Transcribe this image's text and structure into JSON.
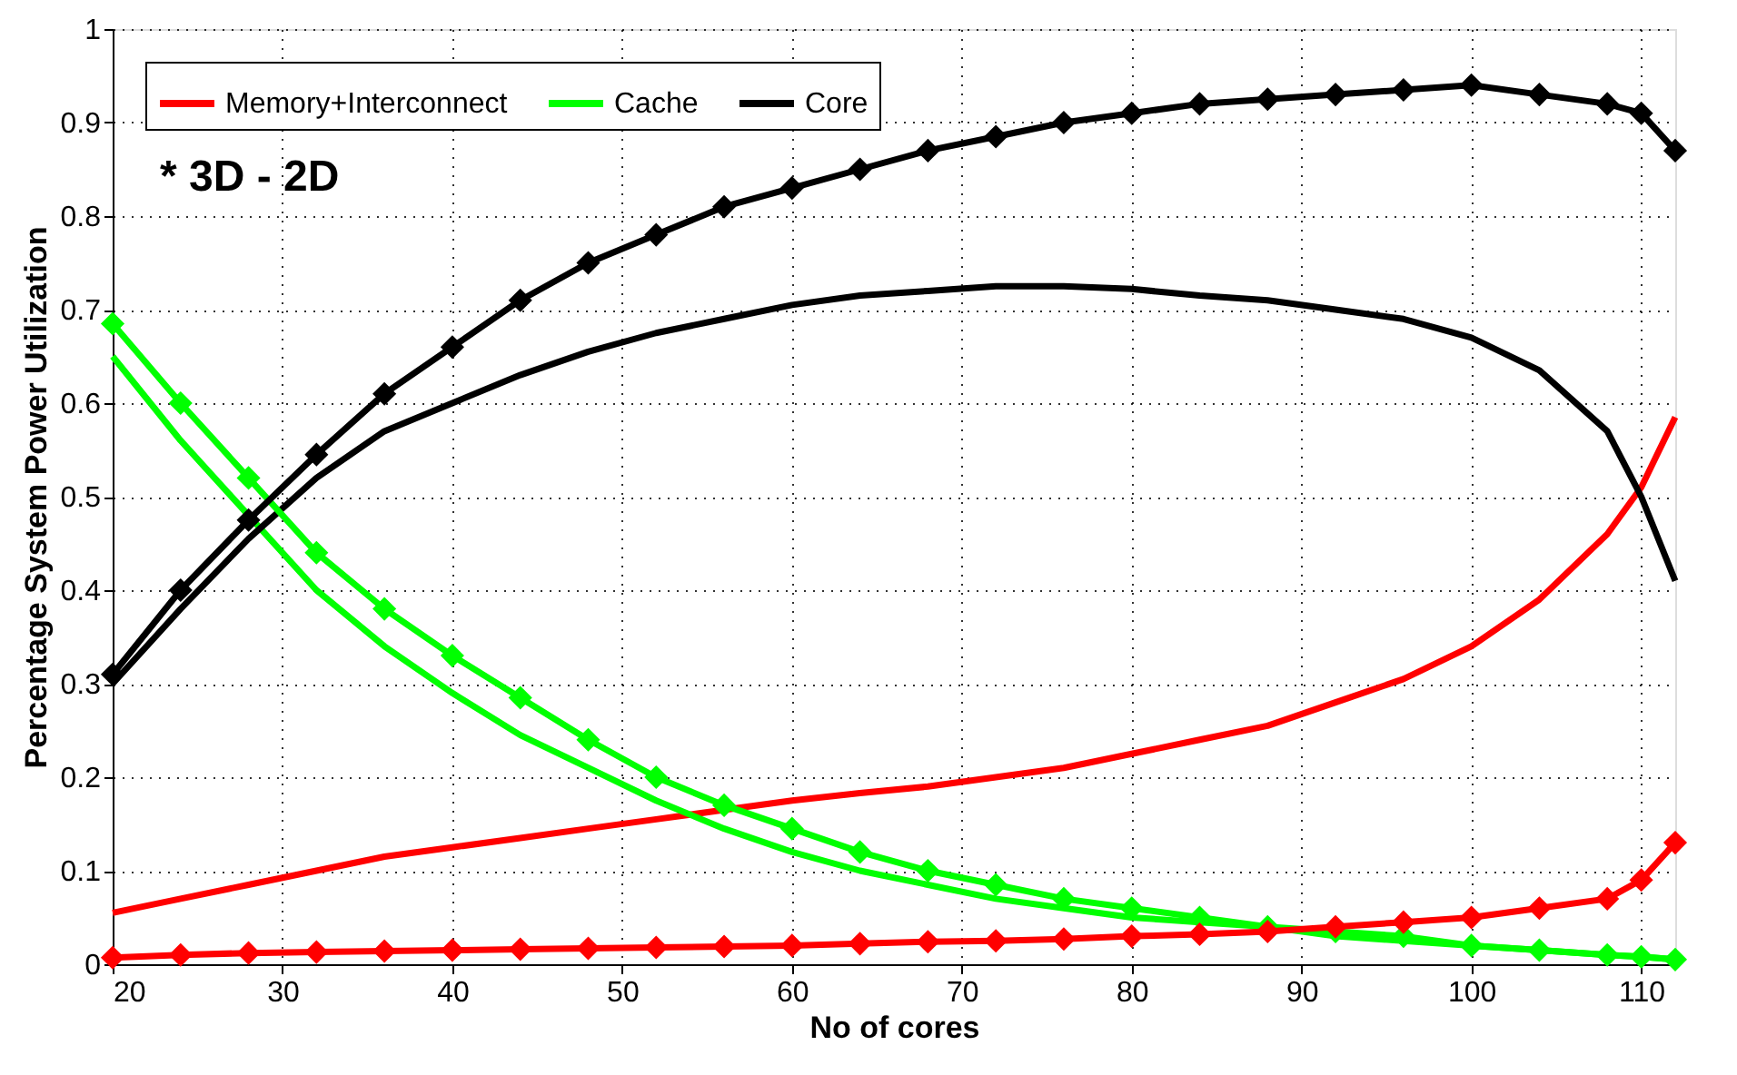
{
  "chart_data": {
    "type": "line",
    "xlabel": "No of cores",
    "ylabel": "Percentage System Power Utilization",
    "annotations": [
      "* 3D - 2D"
    ],
    "x": [
      20,
      24,
      28,
      32,
      36,
      40,
      44,
      48,
      52,
      56,
      60,
      64,
      68,
      72,
      76,
      80,
      84,
      88,
      92,
      96,
      100,
      104,
      108,
      110,
      112
    ],
    "xlim": [
      20,
      112
    ],
    "xticks": [
      20,
      30,
      40,
      50,
      60,
      70,
      80,
      90,
      100,
      110
    ],
    "ylim": [
      0,
      1
    ],
    "yticks": [
      0,
      0.1,
      0.2,
      0.3,
      0.4,
      0.5,
      0.6,
      0.7,
      0.8,
      0.9,
      1
    ],
    "grid": true,
    "legend": "top left",
    "line_style": "solid",
    "series": [
      {
        "name": "Memory+Interconnect",
        "color": "#ff0000",
        "marker": "none",
        "values": [
          0.055,
          0.07,
          0.085,
          0.1,
          0.115,
          0.125,
          0.135,
          0.145,
          0.155,
          0.165,
          0.175,
          0.183,
          0.19,
          0.2,
          0.21,
          0.225,
          0.24,
          0.255,
          0.28,
          0.305,
          0.34,
          0.39,
          0.46,
          0.51,
          0.585
        ]
      },
      {
        "name": "Cache",
        "color": "#00ff00",
        "marker": "none",
        "values": [
          0.65,
          0.56,
          0.48,
          0.4,
          0.34,
          0.29,
          0.245,
          0.21,
          0.175,
          0.145,
          0.12,
          0.1,
          0.085,
          0.07,
          0.06,
          0.05,
          0.045,
          0.04,
          0.03,
          0.025,
          0.02,
          0.015,
          0.01,
          0.008,
          0.005
        ]
      },
      {
        "name": "Core",
        "color": "#000000",
        "marker": "none",
        "values": [
          0.3,
          0.38,
          0.455,
          0.52,
          0.57,
          0.6,
          0.63,
          0.655,
          0.675,
          0.69,
          0.705,
          0.715,
          0.72,
          0.725,
          0.725,
          0.722,
          0.715,
          0.71,
          0.7,
          0.69,
          0.67,
          0.635,
          0.57,
          0.5,
          0.41
        ]
      },
      {
        "color": "#00ff00",
        "marker": "diamond",
        "values": [
          0.685,
          0.6,
          0.52,
          0.44,
          0.38,
          0.33,
          0.285,
          0.24,
          0.2,
          0.17,
          0.145,
          0.12,
          0.1,
          0.085,
          0.07,
          0.06,
          0.05,
          0.04,
          0.035,
          0.03,
          0.02,
          0.015,
          0.01,
          0.008,
          0.005
        ]
      },
      {
        "color": "#ff0000",
        "marker": "diamond",
        "values": [
          0.007,
          0.01,
          0.012,
          0.013,
          0.014,
          0.015,
          0.016,
          0.017,
          0.018,
          0.019,
          0.02,
          0.022,
          0.024,
          0.025,
          0.027,
          0.03,
          0.032,
          0.035,
          0.04,
          0.045,
          0.05,
          0.06,
          0.07,
          0.09,
          0.13
        ]
      },
      {
        "color": "#000000",
        "marker": "diamond",
        "values": [
          0.31,
          0.4,
          0.475,
          0.545,
          0.61,
          0.66,
          0.71,
          0.75,
          0.78,
          0.81,
          0.83,
          0.85,
          0.87,
          0.885,
          0.9,
          0.91,
          0.92,
          0.925,
          0.93,
          0.935,
          0.94,
          0.93,
          0.92,
          0.91,
          0.87
        ]
      }
    ]
  }
}
